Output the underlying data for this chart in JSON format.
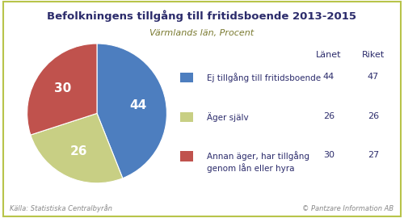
{
  "title": "Befolkningens tillgång till fritidsboende 2013-2015",
  "subtitle": "Värmlands län, Procent",
  "slices": [
    44,
    26,
    30
  ],
  "labels": [
    "44",
    "26",
    "30"
  ],
  "colors": [
    "#4d7ebf",
    "#c8cf84",
    "#c0524d"
  ],
  "legend_labels": [
    "Ej tillgång till fritidsboende",
    "Äger själv",
    "Annan äger, har tillgång\ngenom lån eller hyra"
  ],
  "lanet": [
    44,
    26,
    30
  ],
  "riket": [
    47,
    26,
    27
  ],
  "col_header_lanet": "Länet",
  "col_header_riket": "Riket",
  "footer_left": "Källa: Statistiska Centralbyrån",
  "footer_right": "© Pantzare Information AB",
  "bg_color": "#ffffff",
  "border_color": "#b8c44a",
  "title_color": "#2b2b6b",
  "subtitle_color": "#7a7a30",
  "text_color": "#2b2b6b",
  "footer_color": "#888888",
  "startangle": 90
}
